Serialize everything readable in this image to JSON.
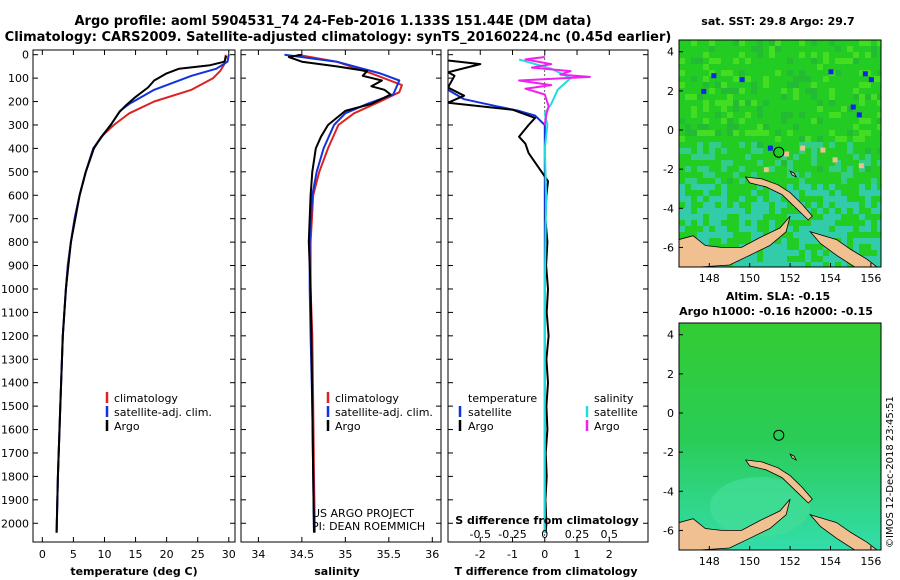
{
  "title": {
    "line1": "Argo profile: aoml 5904531_74 24-Feb-2016 1.133S 151.44E (DM data)",
    "line2": "Climatology: CARS2009. Satellite-adjusted climatology: synTS_20160224.nc (0.45d earlier)"
  },
  "colors": {
    "climatology": "#dd2222",
    "satellite": "#1133dd",
    "argo": "#000000",
    "sat_s": "#22dddd",
    "argo_s": "#ee22ee",
    "land": "#f0c090",
    "sea_green": "#22cc22",
    "sea_cyan": "#33cc99",
    "map_blue": "#1122ee"
  },
  "depth_axis": {
    "ticks": [
      0,
      100,
      200,
      300,
      400,
      500,
      600,
      700,
      800,
      900,
      1000,
      1100,
      1200,
      1300,
      1400,
      1500,
      1600,
      1700,
      1800,
      1900,
      2000
    ]
  },
  "chart_data": [
    {
      "type": "line",
      "xlabel": "temperature (deg C)",
      "xlim": [
        -1.5,
        31
      ],
      "xticks": [
        0,
        5,
        10,
        15,
        20,
        25,
        30
      ],
      "ylim": [
        -20,
        2080
      ],
      "legend": {
        "position": "lower-center",
        "entries": [
          "climatology",
          "satellite-adj. clim.",
          "Argo"
        ]
      },
      "series": [
        {
          "name": "climatology",
          "color_key": "climatology",
          "points": [
            [
              29.5,
              0
            ],
            [
              29.3,
              40
            ],
            [
              28.6,
              70
            ],
            [
              27.5,
              100
            ],
            [
              24,
              150
            ],
            [
              18,
              200
            ],
            [
              14,
              250
            ],
            [
              11.5,
              300
            ],
            [
              9.5,
              350
            ],
            [
              8.2,
              400
            ],
            [
              7,
              500
            ],
            [
              6,
              600
            ],
            [
              5.2,
              700
            ],
            [
              4.6,
              800
            ],
            [
              4.1,
              900
            ],
            [
              3.8,
              1000
            ],
            [
              3.3,
              1200
            ],
            [
              2.9,
              1500
            ],
            [
              2.5,
              1800
            ],
            [
              2.3,
              2040
            ]
          ]
        },
        {
          "name": "satellite-adj. clim.",
          "color_key": "satellite",
          "points": [
            [
              30,
              0
            ],
            [
              29.8,
              30
            ],
            [
              28,
              60
            ],
            [
              24,
              90
            ],
            [
              18,
              150
            ],
            [
              14,
              210
            ],
            [
              12.5,
              240
            ],
            [
              11,
              300
            ],
            [
              9.6,
              350
            ],
            [
              8.2,
              400
            ],
            [
              7,
              500
            ],
            [
              6,
              600
            ],
            [
              5.2,
              700
            ],
            [
              4.6,
              800
            ],
            [
              4.1,
              900
            ],
            [
              3.8,
              1000
            ],
            [
              3.3,
              1200
            ],
            [
              2.9,
              1500
            ],
            [
              2.5,
              1800
            ],
            [
              2.3,
              2040
            ]
          ]
        },
        {
          "name": "Argo",
          "color_key": "argo",
          "points": [
            [
              29.6,
              5
            ],
            [
              29.3,
              30
            ],
            [
              27,
              45
            ],
            [
              22,
              60
            ],
            [
              20,
              80
            ],
            [
              18,
              110
            ],
            [
              17,
              140
            ],
            [
              15,
              180
            ],
            [
              13.5,
              215
            ],
            [
              12.4,
              245
            ],
            [
              11,
              300
            ],
            [
              9.5,
              350
            ],
            [
              8.3,
              400
            ],
            [
              7,
              500
            ],
            [
              6,
              600
            ],
            [
              5.3,
              700
            ],
            [
              4.6,
              800
            ],
            [
              4.2,
              900
            ],
            [
              3.8,
              1000
            ],
            [
              3.3,
              1200
            ],
            [
              2.9,
              1500
            ],
            [
              2.5,
              1800
            ],
            [
              2.3,
              2040
            ]
          ]
        }
      ]
    },
    {
      "type": "line",
      "xlabel": "salinity",
      "xlim": [
        33.8,
        36.1
      ],
      "xticks": [
        34,
        34.5,
        35,
        35.5,
        36
      ],
      "ylim": [
        -20,
        2080
      ],
      "annotations": [
        "US ARGO PROJECT",
        "PI: DEAN ROEMMICH"
      ],
      "legend": {
        "position": "lower-center",
        "entries": [
          "climatology",
          "satellite-adj. clim.",
          "Argo"
        ]
      },
      "series": [
        {
          "name": "climatology",
          "color_key": "climatology",
          "points": [
            [
              34.45,
              0
            ],
            [
              34.9,
              30
            ],
            [
              35.3,
              80
            ],
            [
              35.65,
              130
            ],
            [
              35.62,
              160
            ],
            [
              35.4,
              200
            ],
            [
              35.1,
              250
            ],
            [
              34.92,
              300
            ],
            [
              34.8,
              400
            ],
            [
              34.7,
              500
            ],
            [
              34.63,
              600
            ],
            [
              34.6,
              800
            ],
            [
              34.6,
              1000
            ],
            [
              34.62,
              1200
            ],
            [
              34.63,
              1500
            ],
            [
              34.64,
              1800
            ],
            [
              34.65,
              2040
            ]
          ]
        },
        {
          "name": "satellite-adj. clim.",
          "color_key": "satellite",
          "points": [
            [
              34.3,
              0
            ],
            [
              34.9,
              30
            ],
            [
              35.4,
              80
            ],
            [
              35.62,
              110
            ],
            [
              35.55,
              170
            ],
            [
              35.25,
              210
            ],
            [
              35.0,
              250
            ],
            [
              34.87,
              300
            ],
            [
              34.75,
              400
            ],
            [
              34.67,
              500
            ],
            [
              34.62,
              600
            ],
            [
              34.59,
              800
            ],
            [
              34.59,
              1000
            ],
            [
              34.6,
              1200
            ],
            [
              34.62,
              1500
            ],
            [
              34.63,
              1800
            ],
            [
              34.64,
              2040
            ]
          ]
        },
        {
          "name": "Argo",
          "color_key": "argo",
          "points": [
            [
              34.5,
              0
            ],
            [
              34.35,
              10
            ],
            [
              34.5,
              30
            ],
            [
              34.9,
              50
            ],
            [
              35.25,
              70
            ],
            [
              35.2,
              90
            ],
            [
              35.42,
              110
            ],
            [
              35.3,
              135
            ],
            [
              35.45,
              150
            ],
            [
              35.52,
              170
            ],
            [
              35.3,
              210
            ],
            [
              35.0,
              240
            ],
            [
              34.9,
              270
            ],
            [
              34.8,
              300
            ],
            [
              34.72,
              350
            ],
            [
              34.66,
              400
            ],
            [
              34.62,
              500
            ],
            [
              34.6,
              600
            ],
            [
              34.59,
              700
            ],
            [
              34.58,
              800
            ],
            [
              34.59,
              900
            ],
            [
              34.6,
              1000
            ],
            [
              34.61,
              1200
            ],
            [
              34.62,
              1500
            ],
            [
              34.63,
              1800
            ],
            [
              34.64,
              2040
            ]
          ]
        }
      ]
    },
    {
      "type": "line",
      "xlabel": "T difference from climatology",
      "xlim": [
        -3,
        3.2
      ],
      "xticks": [
        -2,
        -1,
        0,
        1,
        2
      ],
      "top_label": "S difference from climatology",
      "top_ticks": [
        "-0.5",
        "-0.25",
        "0",
        "0.25",
        "0.5"
      ],
      "top_tick_t": [
        -2,
        -1,
        0,
        1,
        2
      ],
      "s_scale": 4,
      "ylim": [
        -20,
        2080
      ],
      "legend_left": {
        "title": "temperature",
        "entries": [
          "satellite",
          "Argo"
        ]
      },
      "legend_right": {
        "title": "salinity",
        "entries": [
          "satellite",
          "Argo"
        ]
      },
      "series": [
        {
          "name": "T satellite",
          "color_key": "satellite",
          "unit": "T",
          "points": [
            [
              -3,
              150
            ],
            [
              -2.5,
              190
            ],
            [
              -1.5,
              220
            ],
            [
              -0.8,
              240
            ],
            [
              -0.3,
              260
            ],
            [
              0,
              300
            ],
            [
              0,
              400
            ],
            [
              0,
              800
            ],
            [
              0,
              1200
            ],
            [
              0,
              1600
            ],
            [
              0,
              2040
            ]
          ]
        },
        {
          "name": "T Argo",
          "color_key": "argo",
          "unit": "T",
          "points": [
            [
              -3,
              25
            ],
            [
              -2,
              40
            ],
            [
              -3,
              75
            ],
            [
              -2.8,
              90
            ],
            [
              -3,
              140
            ],
            [
              -2.5,
              175
            ],
            [
              -3,
              205
            ],
            [
              -1,
              235
            ],
            [
              -0.3,
              270
            ],
            [
              -0.5,
              300
            ],
            [
              -0.8,
              350
            ],
            [
              -0.6,
              380
            ],
            [
              -0.5,
              420
            ],
            [
              -0.2,
              480
            ],
            [
              0.1,
              540
            ],
            [
              0.05,
              600
            ],
            [
              0.02,
              700
            ],
            [
              0.08,
              800
            ],
            [
              0.04,
              900
            ],
            [
              0.1,
              1000
            ],
            [
              0.06,
              1100
            ],
            [
              0.12,
              1200
            ],
            [
              0.05,
              1300
            ],
            [
              0.1,
              1400
            ],
            [
              0.05,
              1500
            ],
            [
              0.08,
              1600
            ],
            [
              0.03,
              1700
            ],
            [
              0.06,
              1800
            ],
            [
              0.02,
              1900
            ],
            [
              0.05,
              2000
            ],
            [
              0.03,
              2040
            ]
          ]
        },
        {
          "name": "S satellite",
          "color_key": "sat_s",
          "unit": "S",
          "points": [
            [
              -0.2,
              20
            ],
            [
              0.05,
              60
            ],
            [
              0.2,
              100
            ],
            [
              0.1,
              150
            ],
            [
              0.05,
              210
            ],
            [
              0.0,
              250
            ],
            [
              0.02,
              300
            ],
            [
              0.0,
              400
            ],
            [
              0.01,
              600
            ],
            [
              0.0,
              1000
            ],
            [
              0.0,
              2040
            ]
          ]
        },
        {
          "name": "S Argo",
          "color_key": "argo_s",
          "unit": "S",
          "points": [
            [
              0.0,
              10
            ],
            [
              -0.15,
              20
            ],
            [
              0.05,
              40
            ],
            [
              -0.1,
              55
            ],
            [
              0.2,
              70
            ],
            [
              0.12,
              85
            ],
            [
              0.35,
              95
            ],
            [
              -0.2,
              110
            ],
            [
              0.05,
              130
            ],
            [
              -0.15,
              145
            ],
            [
              0.0,
              170
            ],
            [
              0.03,
              220
            ],
            [
              0.01,
              260
            ],
            [
              0.0,
              300
            ]
          ]
        }
      ]
    }
  ],
  "maps": [
    {
      "title": "sat. SST: 29.8 Argo: 29.7",
      "xticks": [
        148,
        150,
        152,
        154,
        156
      ],
      "yticks": [
        4,
        2,
        0,
        -2,
        -4,
        -6
      ],
      "xlim": [
        146.5,
        156.5
      ],
      "ylim": [
        -7,
        4.6
      ],
      "marker": [
        151.44,
        -1.133
      ],
      "style": "sst"
    },
    {
      "title": "Altim. SLA: -0.15",
      "subtitle": "Argo h1000: -0.16 h2000: -0.15",
      "xticks": [
        148,
        150,
        152,
        154,
        156
      ],
      "yticks": [
        4,
        2,
        0,
        -2,
        -4,
        -6
      ],
      "xlim": [
        146.5,
        156.5
      ],
      "ylim": [
        -7,
        4.6
      ],
      "marker": [
        151.44,
        -1.133
      ],
      "style": "sla"
    }
  ],
  "footer": "©IMOS 12-Dec-2018 23:45:51"
}
